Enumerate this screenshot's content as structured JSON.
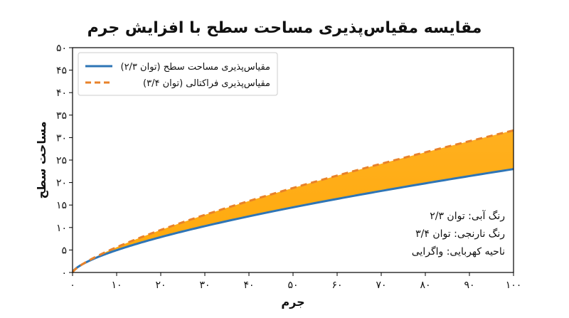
{
  "chart_data": {
    "type": "line",
    "title": "مقایسه مقیاس‌پذیری مساحت سطح با افزایش جرم",
    "xlabel": "جرم",
    "ylabel": "مساحت سطح",
    "xlim": [
      0,
      100
    ],
    "ylim": [
      0,
      50
    ],
    "x_ticks": [
      0,
      10,
      20,
      30,
      40,
      50,
      60,
      70,
      80,
      90,
      100
    ],
    "y_ticks": [
      0,
      5,
      10,
      15,
      20,
      25,
      30,
      35,
      40,
      45,
      50
    ],
    "x_tick_labels": [
      "۰",
      "۱۰",
      "۲۰",
      "۳۰",
      "۴۰",
      "۵۰",
      "۶۰",
      "۷۰",
      "۸۰",
      "۹۰",
      "۱۰۰"
    ],
    "y_tick_labels": [
      "۰",
      "۵",
      "۱۰",
      "۱۵",
      "۲۰",
      "۲۵",
      "۳۰",
      "۳۵",
      "۴۰",
      "۴۵",
      "۵۰"
    ],
    "grid": false,
    "legend_position": "top-left",
    "series": [
      {
        "name": "مقیاس‌پذیری مساحت سطح (توان ۲/۳)",
        "color": "#2e75b6",
        "style": "solid",
        "exponent": 0.6667,
        "x": [
          0,
          1,
          2,
          3,
          5,
          7,
          10,
          15,
          20,
          25,
          30,
          40,
          50,
          60,
          70,
          80,
          90,
          100
        ],
        "values": [
          0,
          1.1,
          1.7,
          2.2,
          3.1,
          3.9,
          5.0,
          6.5,
          7.9,
          9.1,
          10.3,
          12.5,
          14.5,
          16.4,
          18.1,
          19.8,
          21.4,
          23.0
        ]
      },
      {
        "name": "مقیاس‌پذیری فراکتالی (توان ۳/۴)",
        "color": "#e8822a",
        "style": "dashed",
        "exponent": 0.75,
        "x": [
          0,
          1,
          2,
          3,
          5,
          7,
          10,
          15,
          20,
          25,
          30,
          40,
          50,
          60,
          70,
          80,
          90,
          100
        ],
        "values": [
          0,
          1.0,
          1.7,
          2.3,
          3.3,
          4.2,
          5.6,
          7.6,
          9.5,
          11.2,
          12.8,
          15.9,
          18.8,
          21.6,
          24.2,
          26.8,
          29.2,
          31.6
        ]
      }
    ],
    "fill_between": {
      "color": "#ffa500",
      "between": [
        0,
        1
      ]
    },
    "annotations": [
      "رنگ آبی: توان ۲/۳",
      "رنگ نارنجی: توان ۳/۴",
      "ناحیه کهربایی: واگرایی"
    ]
  }
}
